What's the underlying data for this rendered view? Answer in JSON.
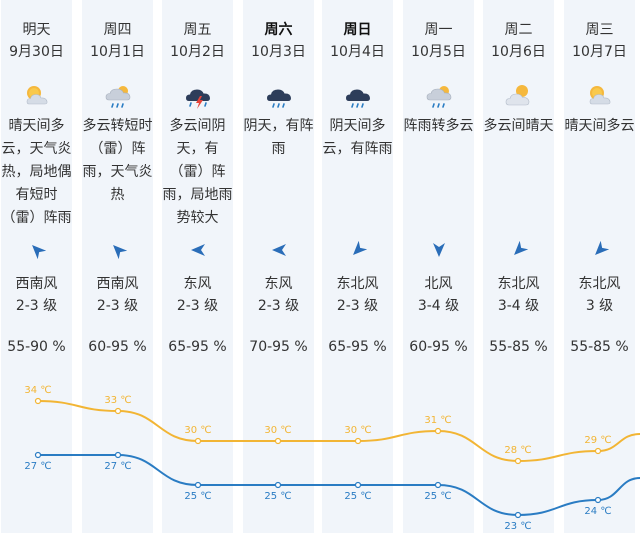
{
  "colors": {
    "column_bg": "#f1f5fa",
    "high_line": "#f2b534",
    "low_line": "#2a7cc3"
  },
  "days": [
    {
      "weekday": "明天",
      "bold": false,
      "date": "9月30日",
      "icon": "sunny-cloudy-icon",
      "desc_lines": [
        "晴天间多",
        "云，天气炎",
        "热，局地偶",
        "有短时",
        "（雷）阵雨"
      ],
      "wind_icon": "wind-southwest-arrow-icon",
      "wind_rot": 45,
      "wind_name": "西南风",
      "wind_level": "2-3 级",
      "humidity": "55-90 %",
      "high": "34 ℃",
      "low": "27 ℃"
    },
    {
      "weekday": "周四",
      "bold": false,
      "date": "10月1日",
      "icon": "cloudy-shower-icon",
      "desc_lines": [
        "多云转短时",
        "（雷）阵",
        "雨，天气炎",
        "热"
      ],
      "wind_icon": "wind-southwest-arrow-icon",
      "wind_rot": 45,
      "wind_name": "西南风",
      "wind_level": "2-3 级",
      "humidity": "60-95 %",
      "high": "33 ℃",
      "low": "27 ℃"
    },
    {
      "weekday": "周五",
      "bold": false,
      "date": "10月2日",
      "icon": "thunderstorm-icon",
      "desc_lines": [
        "多云间阴",
        "天，有",
        "（雷）阵",
        "雨，局地雨",
        "势较大"
      ],
      "wind_icon": "wind-east-arrow-icon",
      "wind_rot": 0,
      "wind_name": "东风",
      "wind_level": "2-3 级",
      "humidity": "65-95 %",
      "high": "30 ℃",
      "low": "25 ℃"
    },
    {
      "weekday": "周六",
      "bold": true,
      "date": "10月3日",
      "icon": "shower-icon",
      "desc_lines": [
        "阴天，有阵",
        "雨"
      ],
      "wind_icon": "wind-east-arrow-icon",
      "wind_rot": 0,
      "wind_name": "东风",
      "wind_level": "2-3 级",
      "humidity": "70-95 %",
      "high": "30 ℃",
      "low": "25 ℃"
    },
    {
      "weekday": "周日",
      "bold": true,
      "date": "10月4日",
      "icon": "shower-icon",
      "desc_lines": [
        "阴天间多",
        "云，有阵雨"
      ],
      "wind_icon": "wind-northeast-arrow-icon",
      "wind_rot": -45,
      "wind_name": "东北风",
      "wind_level": "2-3 级",
      "humidity": "65-95 %",
      "high": "30 ℃",
      "low": "25 ℃"
    },
    {
      "weekday": "周一",
      "bold": false,
      "date": "10月5日",
      "icon": "cloudy-shower-icon",
      "desc_lines": [
        "阵雨转多云"
      ],
      "wind_icon": "wind-north-arrow-icon",
      "wind_rot": -90,
      "wind_name": "北风",
      "wind_level": "3-4 级",
      "humidity": "60-95 %",
      "high": "31 ℃",
      "low": "25 ℃"
    },
    {
      "weekday": "周二",
      "bold": false,
      "date": "10月6日",
      "icon": "cloudy-sunny-icon",
      "desc_lines": [
        "多云间晴天"
      ],
      "wind_icon": "wind-northeast-arrow-icon",
      "wind_rot": -45,
      "wind_name": "东北风",
      "wind_level": "3-4 级",
      "humidity": "55-85 %",
      "high": "28 ℃",
      "low": "23 ℃"
    },
    {
      "weekday": "周三",
      "bold": false,
      "date": "10月7日",
      "icon": "sunny-cloudy-icon",
      "desc_lines": [
        "晴天间多云"
      ],
      "wind_icon": "wind-northeast-arrow-icon",
      "wind_rot": -45,
      "wind_name": "东北风",
      "wind_level": "3 级",
      "humidity": "55-85 %",
      "high": "29 ℃",
      "low": "24 ℃"
    }
  ],
  "chart_data": {
    "type": "line",
    "categories": [
      "9月30日",
      "10月1日",
      "10月2日",
      "10月3日",
      "10月4日",
      "10月5日",
      "10月6日",
      "10月7日"
    ],
    "series": [
      {
        "values": [
          34,
          33,
          30,
          30,
          30,
          31,
          28,
          29
        ]
      },
      {
        "values": [
          27,
          27,
          25,
          25,
          25,
          25,
          23,
          24
        ]
      }
    ],
    "unit": "℃"
  }
}
